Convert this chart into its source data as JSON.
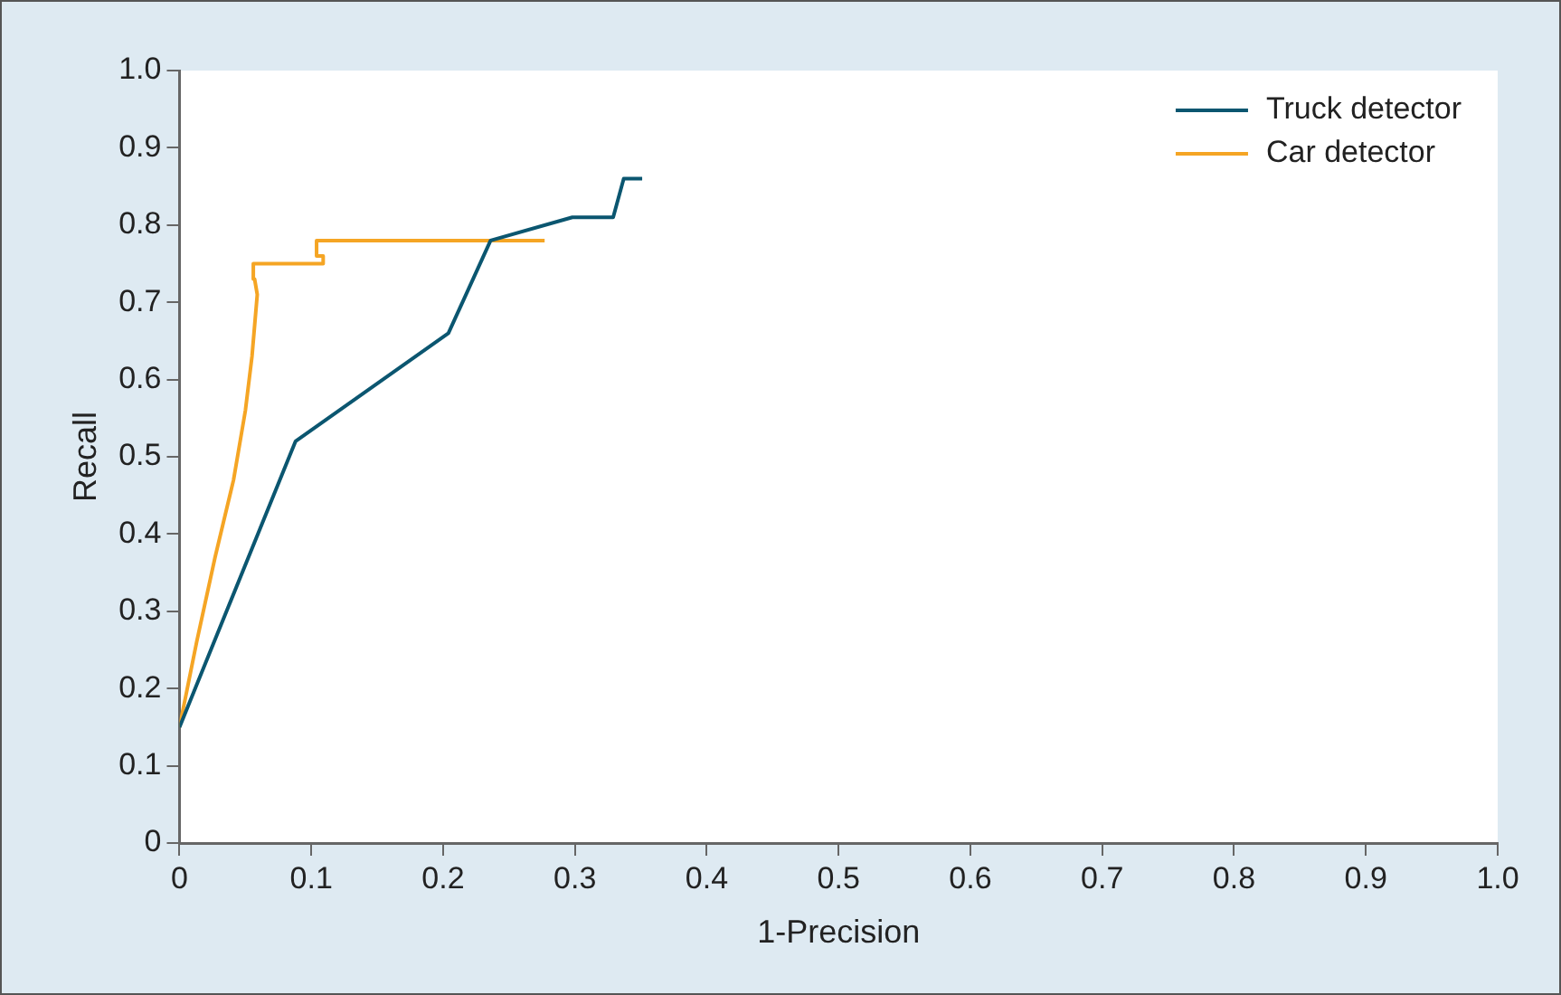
{
  "chart_data": {
    "type": "line",
    "xlabel": "1-Precision",
    "ylabel": "Recall",
    "series": [
      {
        "name": "Truck detector",
        "color": "#0b5670",
        "x": [
          0,
          0.088,
          0.204,
          0.236,
          0.298,
          0.329,
          0.337,
          0.351
        ],
        "values": [
          0.15,
          0.52,
          0.66,
          0.78,
          0.81,
          0.81,
          0.86,
          0.86
        ]
      },
      {
        "name": "Car detector",
        "color": "#f5a524",
        "x": [
          0,
          0.013,
          0.027,
          0.041,
          0.05,
          0.055,
          0.059,
          0.057,
          0.056,
          0.109,
          0.109,
          0.104,
          0.104,
          0.277
        ],
        "values": [
          0.15,
          0.26,
          0.37,
          0.47,
          0.56,
          0.63,
          0.71,
          0.73,
          0.75,
          0.75,
          0.76,
          0.76,
          0.78,
          0.78
        ]
      }
    ],
    "xlim": [
      0,
      1
    ],
    "xticks": [
      0,
      0.1,
      0.2,
      0.3,
      0.4,
      0.5,
      0.6,
      0.7,
      0.8,
      0.9,
      {
        "value": 1,
        "label": "1.0"
      }
    ],
    "ylim": [
      0,
      1
    ],
    "yticks": [
      0,
      0.1,
      0.2,
      0.3,
      0.4,
      0.5,
      0.6,
      0.7,
      0.8,
      0.9,
      {
        "value": 1,
        "label": "1.0"
      }
    ],
    "grid": false,
    "legend": "top right",
    "marker": "none",
    "line_style": "solid"
  }
}
